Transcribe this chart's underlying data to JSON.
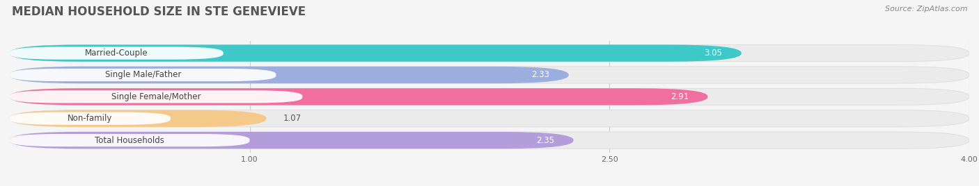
{
  "title": "MEDIAN HOUSEHOLD SIZE IN STE GENEVIEVE",
  "source": "Source: ZipAtlas.com",
  "categories": [
    "Married-Couple",
    "Single Male/Father",
    "Single Female/Mother",
    "Non-family",
    "Total Households"
  ],
  "values": [
    3.05,
    2.33,
    2.91,
    1.07,
    2.35
  ],
  "bar_colors": [
    "#3ec8c8",
    "#9baedd",
    "#f06f9f",
    "#f5c98a",
    "#b39ddb"
  ],
  "bar_bg_color": "#ebebeb",
  "xlim": [
    0.0,
    4.0
  ],
  "xstart": 0.0,
  "xticks": [
    1.0,
    2.5,
    4.0
  ],
  "label_fontsize": 8.5,
  "value_fontsize": 8.5,
  "title_fontsize": 12,
  "background_color": "#f5f5f5",
  "value_inside_threshold": 2.0
}
